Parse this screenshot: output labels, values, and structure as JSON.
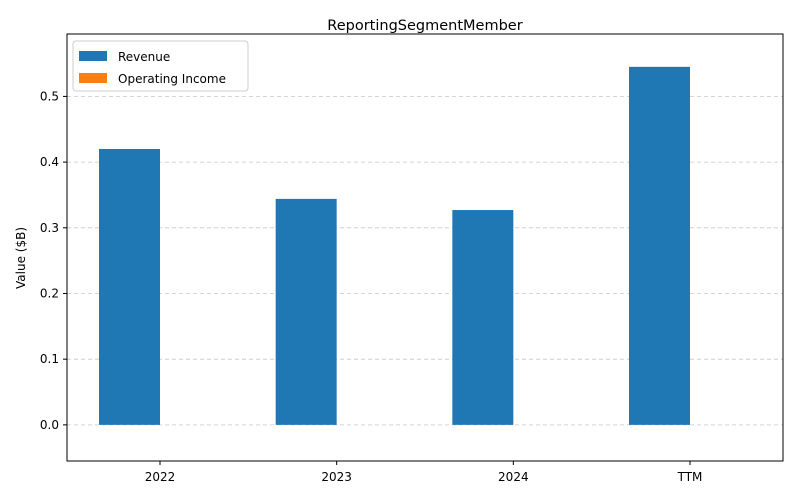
{
  "chart_data": {
    "type": "bar",
    "title": "ReportingSegmentMember",
    "xlabel": "",
    "ylabel": "Value ($B)",
    "categories": [
      "2022",
      "2023",
      "2024",
      "TTM"
    ],
    "series": [
      {
        "name": "Revenue",
        "color": "#1f77b4",
        "values": [
          0.42,
          0.344,
          0.327,
          0.545
        ]
      },
      {
        "name": "Operating Income",
        "color": "#ff7f0e",
        "values": [
          0,
          0,
          0,
          0
        ]
      }
    ],
    "ylim": [
      -0.055,
      0.595
    ],
    "yticks": [
      0.0,
      0.1,
      0.2,
      0.3,
      0.4,
      0.5
    ],
    "ytick_labels": [
      "0.0",
      "0.1",
      "0.2",
      "0.3",
      "0.4",
      "0.5"
    ],
    "grid": true,
    "grid_axis": "y",
    "legend_position": "top-left"
  }
}
